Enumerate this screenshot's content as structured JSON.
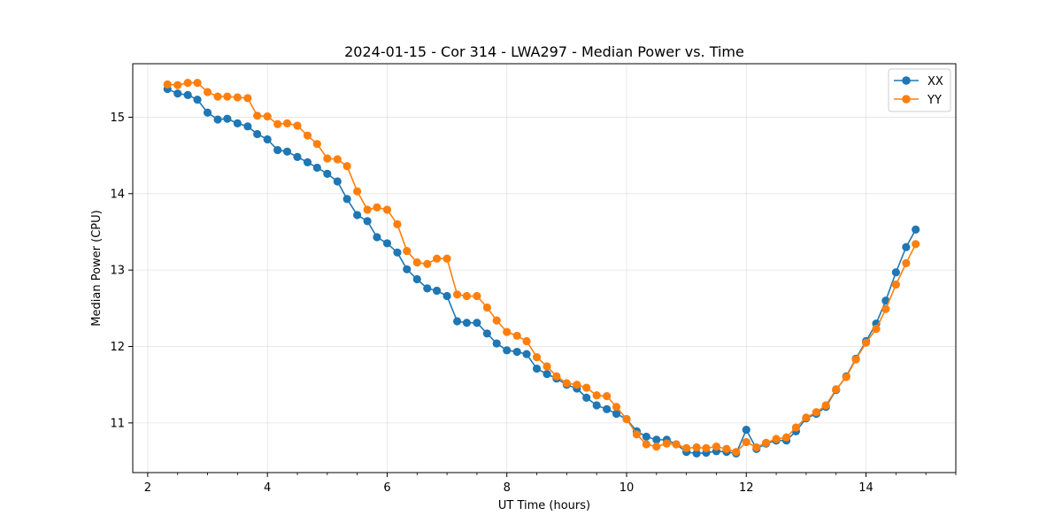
{
  "chart_data": {
    "type": "line",
    "title": "2024-01-15 - Cor 314 - LWA297 - Median Power vs. Time",
    "xlabel": "UT Time (hours)",
    "ylabel": "Median Power (CPU)",
    "xlim": [
      1.75,
      15.5
    ],
    "ylim": [
      10.35,
      15.7
    ],
    "xticks": [
      2,
      4,
      6,
      8,
      10,
      12,
      14
    ],
    "yticks": [
      11,
      12,
      13,
      14,
      15
    ],
    "grid": true,
    "legend_position": "top-right",
    "x": [
      2.33,
      2.5,
      2.67,
      2.83,
      3.0,
      3.17,
      3.33,
      3.5,
      3.67,
      3.83,
      4.0,
      4.17,
      4.33,
      4.5,
      4.67,
      4.83,
      5.0,
      5.17,
      5.33,
      5.5,
      5.67,
      5.83,
      6.0,
      6.17,
      6.33,
      6.5,
      6.67,
      6.83,
      7.0,
      7.17,
      7.33,
      7.5,
      7.67,
      7.83,
      8.0,
      8.17,
      8.33,
      8.5,
      8.67,
      8.83,
      9.0,
      9.17,
      9.33,
      9.5,
      9.67,
      9.83,
      10.0,
      10.17,
      10.33,
      10.5,
      10.67,
      10.83,
      11.0,
      11.17,
      11.33,
      11.5,
      11.67,
      11.83,
      12.0,
      12.17,
      12.33,
      12.5,
      12.67,
      12.83,
      13.0,
      13.17,
      13.33,
      13.5,
      13.67,
      13.83,
      14.0,
      14.17,
      14.33,
      14.5,
      14.67,
      14.83
    ],
    "series": [
      {
        "name": "XX",
        "color": "#1f77b4",
        "values": [
          15.37,
          15.31,
          15.29,
          15.23,
          15.06,
          14.97,
          14.98,
          14.92,
          14.88,
          14.78,
          14.71,
          14.57,
          14.55,
          14.48,
          14.41,
          14.34,
          14.26,
          14.16,
          13.93,
          13.72,
          13.64,
          13.43,
          13.35,
          13.23,
          13.01,
          12.88,
          12.76,
          12.73,
          12.66,
          12.33,
          12.31,
          12.31,
          12.17,
          12.04,
          11.95,
          11.93,
          11.9,
          11.71,
          11.64,
          11.58,
          11.5,
          11.45,
          11.33,
          11.23,
          11.18,
          11.12,
          11.05,
          10.89,
          10.82,
          10.78,
          10.78,
          10.72,
          10.62,
          10.6,
          10.61,
          10.63,
          10.62,
          10.6,
          10.91,
          10.66,
          10.73,
          10.77,
          10.77,
          10.89,
          11.06,
          11.12,
          11.21,
          11.43,
          11.61,
          11.84,
          12.07,
          12.3,
          12.6,
          12.97,
          13.3,
          13.53
        ]
      },
      {
        "name": "YY",
        "color": "#ff7f0e",
        "values": [
          15.43,
          15.42,
          15.45,
          15.45,
          15.33,
          15.27,
          15.27,
          15.26,
          15.25,
          15.02,
          15.01,
          14.91,
          14.92,
          14.89,
          14.76,
          14.65,
          14.46,
          14.45,
          14.36,
          14.03,
          13.79,
          13.82,
          13.79,
          13.6,
          13.25,
          13.1,
          13.08,
          13.15,
          13.15,
          12.68,
          12.66,
          12.66,
          12.51,
          12.34,
          12.19,
          12.14,
          12.07,
          11.86,
          11.74,
          11.61,
          11.52,
          11.5,
          11.46,
          11.36,
          11.35,
          11.21,
          11.05,
          10.85,
          10.72,
          10.69,
          10.73,
          10.72,
          10.67,
          10.68,
          10.67,
          10.69,
          10.66,
          10.62,
          10.75,
          10.68,
          10.74,
          10.79,
          10.81,
          10.94,
          11.07,
          11.14,
          11.23,
          11.44,
          11.6,
          11.83,
          12.05,
          12.23,
          12.49,
          12.81,
          13.09,
          13.34
        ]
      }
    ]
  }
}
